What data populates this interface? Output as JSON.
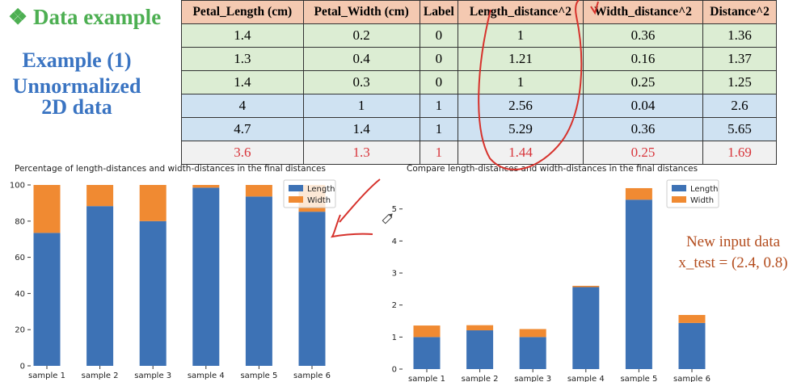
{
  "section_title": "❖ Data example",
  "example_title": "Example (1)",
  "example_subtitle_line1": "Unnormalized",
  "example_subtitle_line2": "2D data",
  "table": {
    "headers": [
      "Petal_Length (cm)",
      "Petal_Width (cm)",
      "Label",
      "Length_distance^2",
      "Width_distance^2",
      "Distance^2"
    ],
    "rows": [
      [
        "1.4",
        "0.2",
        "0",
        "1",
        "0.36",
        "1.36"
      ],
      [
        "1.3",
        "0.4",
        "0",
        "1.21",
        "0.16",
        "1.37"
      ],
      [
        "1.4",
        "0.3",
        "0",
        "1",
        "0.25",
        "1.25"
      ],
      [
        "4",
        "1",
        "1",
        "2.56",
        "0.04",
        "2.6"
      ],
      [
        "4.7",
        "1.4",
        "1",
        "5.29",
        "0.36",
        "5.65"
      ],
      [
        "3.6",
        "1.3",
        "1",
        "1.44",
        "0.25",
        "1.69"
      ]
    ],
    "row_colors": [
      "#dcedd3",
      "#dcedd3",
      "#dcedd3",
      "#cfe2f2",
      "#cfe2f2",
      "#f1f1f1"
    ],
    "highlight_text_color": "#d8343a"
  },
  "new_input": {
    "line1": "New input data",
    "line2": "x_test = (2.4, 0.8)",
    "color": "#b34c1d"
  },
  "chart_data": [
    {
      "type": "bar",
      "stacked": true,
      "title": "Percentage of length-distances and width-distances in the final distances",
      "categories": [
        "sample 1",
        "sample 2",
        "sample 3",
        "sample 4",
        "sample 5",
        "sample 6"
      ],
      "series": [
        {
          "name": "Length",
          "color": "#3d72b5",
          "values": [
            73.5,
            88.3,
            80.0,
            98.5,
            93.6,
            85.2
          ]
        },
        {
          "name": "Width",
          "color": "#f08a32",
          "values": [
            26.5,
            11.7,
            20.0,
            1.5,
            6.4,
            14.8
          ]
        }
      ],
      "yticks": [
        "0",
        "20",
        "40",
        "60",
        "80",
        "100"
      ],
      "ylim": [
        0,
        100
      ],
      "legend": "top-right",
      "grid": false
    },
    {
      "type": "bar",
      "stacked": true,
      "title": "Compare length-distances and width-distances in the final distances",
      "categories": [
        "sample 1",
        "sample 2",
        "sample 3",
        "sample 4",
        "sample 5",
        "sample 6"
      ],
      "series": [
        {
          "name": "Length",
          "color": "#3d72b5",
          "values": [
            1,
            1.21,
            1,
            2.56,
            5.29,
            1.44
          ]
        },
        {
          "name": "Width",
          "color": "#f08a32",
          "values": [
            0.36,
            0.16,
            0.25,
            0.04,
            0.36,
            0.25
          ]
        }
      ],
      "yticks": [
        "0",
        "1",
        "2",
        "3",
        "4",
        "5"
      ],
      "ylim": [
        0,
        5.75
      ],
      "legend": "top-right",
      "grid": false
    }
  ],
  "annotation_color": "#d6322c"
}
